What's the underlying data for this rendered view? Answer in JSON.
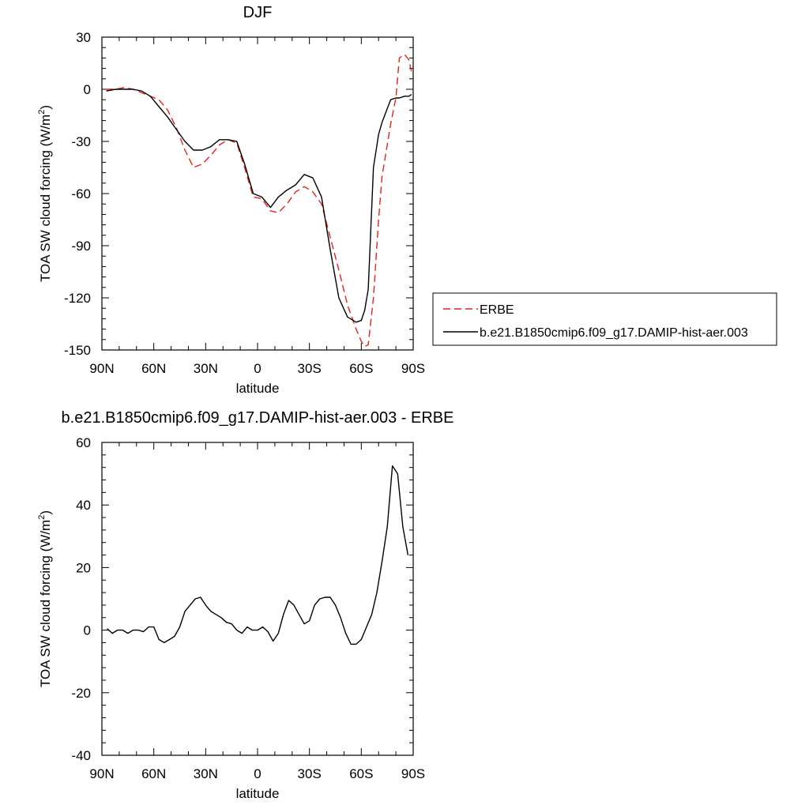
{
  "chart_data": [
    {
      "type": "line",
      "title": "DJF",
      "xlabel": "latitude",
      "ylabel": "TOA SW cloud forcing (W/m",
      "ylabel_sup": "2",
      "ylabel_close": ")",
      "xlim": [
        90,
        -90
      ],
      "ylim": [
        -150,
        30
      ],
      "xticks": [
        {
          "value": 90,
          "label": "90N"
        },
        {
          "value": 60,
          "label": "60N"
        },
        {
          "value": 30,
          "label": "30N"
        },
        {
          "value": 0,
          "label": "0"
        },
        {
          "value": -30,
          "label": "30S"
        },
        {
          "value": -60,
          "label": "60S"
        },
        {
          "value": -90,
          "label": "90S"
        }
      ],
      "yticks": [
        30,
        0,
        -30,
        -60,
        -90,
        -120,
        -150
      ],
      "legend_position": "right",
      "series": [
        {
          "name": "ERBE",
          "color": "#e8201a",
          "dash": "dashed",
          "x": [
            87.5,
            82,
            77,
            72,
            67,
            62,
            57,
            52,
            47,
            42,
            37,
            32,
            27,
            22,
            17,
            12,
            7.5,
            2.5,
            -2.5,
            -7.5,
            -12,
            -17,
            -22,
            -27,
            -32,
            -37,
            -42,
            -47,
            -52,
            -57,
            -60,
            -62,
            -64,
            -67,
            -70,
            -72,
            -77,
            -80,
            -82,
            -85,
            -87.5,
            -89
          ],
          "y": [
            0,
            0,
            1,
            0,
            -2,
            -4,
            -6,
            -12,
            -22,
            -35,
            -45,
            -43,
            -38,
            -32,
            -29,
            -31,
            -45,
            -62,
            -63,
            -70,
            -71,
            -66,
            -59,
            -56,
            -59,
            -66,
            -85,
            -104,
            -124,
            -138,
            -145,
            -148,
            -147,
            -120,
            -75,
            -50,
            -20,
            -5,
            18,
            20,
            17,
            10
          ]
        },
        {
          "name": "b.e21.B1850cmip6.f09_g17.DAMIP-hist-aer.003",
          "color": "#000000",
          "dash": "solid",
          "x": [
            87.5,
            82,
            77,
            72,
            67,
            62,
            57,
            52,
            47,
            42,
            37,
            32,
            27,
            22,
            17,
            12,
            7.5,
            2.5,
            -2.5,
            -7.5,
            -12,
            -17,
            -22,
            -27,
            -32,
            -37,
            -42,
            -47,
            -52,
            -57,
            -60,
            -62,
            -64,
            -67,
            -70,
            -72,
            -77,
            -80,
            -82,
            -85,
            -87.5,
            -89
          ],
          "y": [
            -1,
            0,
            0,
            0,
            -1,
            -4,
            -10,
            -16,
            -23,
            -30,
            -35,
            -35,
            -33,
            -29,
            -29,
            -30,
            -43,
            -60,
            -62,
            -68,
            -62,
            -58,
            -55,
            -49,
            -51,
            -62,
            -92,
            -120,
            -131,
            -134,
            -133,
            -127,
            -115,
            -45,
            -26,
            -19,
            -6,
            -5,
            -5,
            -4,
            -4,
            -3
          ]
        }
      ]
    },
    {
      "type": "line",
      "title": "b.e21.B1850cmip6.f09_g17.DAMIP-hist-aer.003 - ERBE",
      "xlabel": "latitude",
      "ylabel": "TOA SW cloud forcing (W/m",
      "ylabel_sup": "2",
      "ylabel_close": ")",
      "xlim": [
        90,
        -90
      ],
      "ylim": [
        -40,
        60
      ],
      "xticks": [
        {
          "value": 90,
          "label": "90N"
        },
        {
          "value": 60,
          "label": "60N"
        },
        {
          "value": 30,
          "label": "30N"
        },
        {
          "value": 0,
          "label": "0"
        },
        {
          "value": -30,
          "label": "30S"
        },
        {
          "value": -60,
          "label": "60S"
        },
        {
          "value": -90,
          "label": "90S"
        }
      ],
      "yticks": [
        60,
        40,
        20,
        0,
        -20,
        -40
      ],
      "series": [
        {
          "color": "#000000",
          "dash": "solid",
          "x": [
            87,
            84,
            81,
            78,
            75,
            72,
            69,
            66,
            63,
            60,
            57,
            54,
            51,
            48,
            45,
            42,
            39,
            36,
            33,
            30,
            27,
            24,
            21,
            18,
            15,
            12,
            9,
            6,
            3,
            0,
            -3,
            -6,
            -9,
            -12,
            -15,
            -18,
            -21,
            -24,
            -27,
            -30,
            -33,
            -36,
            -39,
            -42,
            -45,
            -48,
            -51,
            -54,
            -57,
            -60,
            -63,
            -66,
            -69,
            -72,
            -75,
            -78,
            -81,
            -84,
            -87
          ],
          "y": [
            0.5,
            -1,
            0,
            0,
            -1,
            0,
            0,
            -0.5,
            1,
            1,
            -3,
            -4,
            -3,
            -2,
            1,
            6,
            8,
            10,
            10.5,
            8,
            6,
            5,
            4,
            2.5,
            2,
            0,
            -1,
            1,
            0,
            0,
            1,
            -0.5,
            -3.5,
            -1,
            5,
            9.5,
            8,
            5,
            2,
            3,
            8,
            10,
            10.5,
            10.5,
            8,
            4,
            -1,
            -4.5,
            -4.5,
            -3,
            1,
            5,
            12,
            22,
            33,
            52.5,
            50,
            33,
            24
          ]
        }
      ]
    }
  ]
}
